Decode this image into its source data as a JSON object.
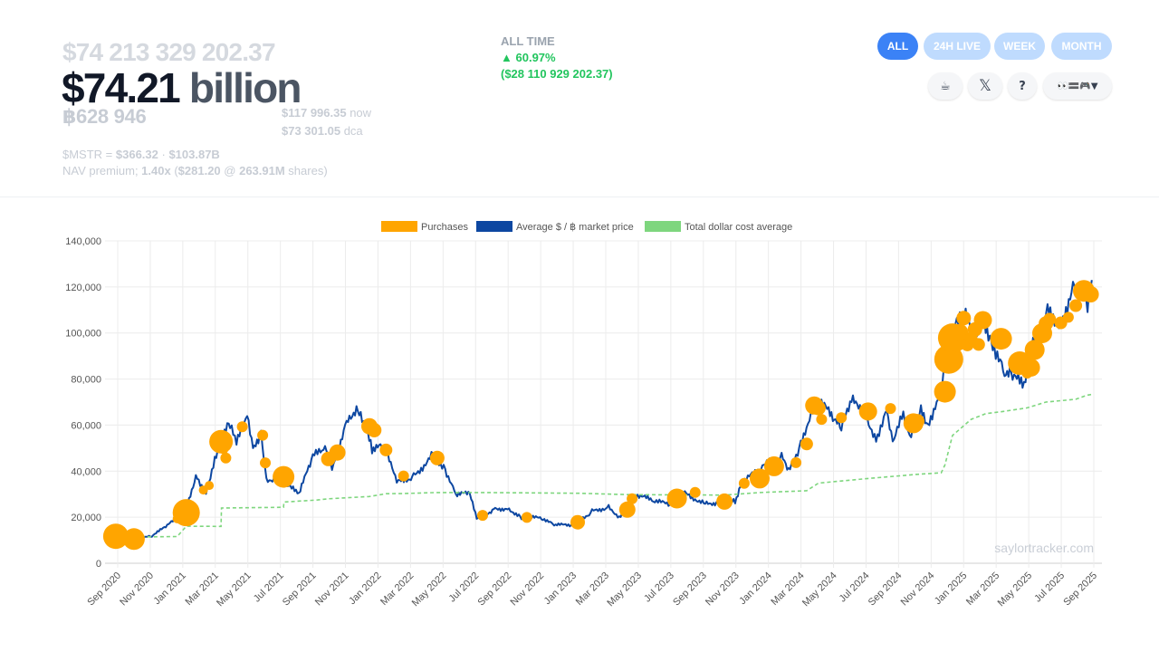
{
  "summary": {
    "usd_value_exact": "$74 213 329 202.37",
    "usd_value_short": "$74.21",
    "usd_value_unit": "billion",
    "btc_holdings": "฿628 946",
    "now_price": "$117 996.35",
    "now_label": "now",
    "dca_price": "$73 301.05",
    "dca_label": "dca",
    "mstr_prefix": "$MSTR = ",
    "mstr_price": "$366.32",
    "mstr_sep": " · ",
    "mstr_cap": "$103.87B",
    "nav_prefix": "NAV premium; ",
    "nav_multiple": "1.40x",
    "nav_open": " (",
    "nav_price": "$281.20",
    "nav_at": " @ ",
    "nav_shares": "263.91M",
    "nav_close": " shares)"
  },
  "change": {
    "label": "ALL TIME",
    "arrow": "▲",
    "percent": "60.97%",
    "absolute": "($28 110 929 202.37)"
  },
  "range_buttons": [
    {
      "label": "ALL",
      "active": true
    },
    {
      "label": "24H LIVE",
      "active": false
    },
    {
      "label": "WEEK",
      "active": false
    },
    {
      "label": "MONTH",
      "active": false
    }
  ],
  "icon_buttons": [
    {
      "name": "coffee-icon",
      "glyph": "☕"
    },
    {
      "name": "x-logo-icon",
      "glyph": "𝕏"
    },
    {
      "name": "help-icon",
      "glyph": "?"
    },
    {
      "name": "theme-menu-icon",
      "glyph": "👀🟰🎮▼"
    }
  ],
  "colors": {
    "accent": "#3b82f6",
    "accent_light": "#bfdbfe",
    "positive": "#22c55e",
    "purchases": "#ffa500",
    "market_price": "#0d47a1",
    "dca_line": "#7ed67e"
  },
  "chart_data": {
    "type": "line",
    "legend": [
      "Purchases",
      "Average $ / ฿ market price",
      "Total dollar cost average"
    ],
    "legend_position": "top",
    "grid": true,
    "ylim": [
      0,
      140000
    ],
    "y_ticks": [
      "140,000",
      "120,000",
      "100,000",
      "80,000",
      "60,000",
      "40,000",
      "20,000",
      "0"
    ],
    "x_ticks": [
      "Sep 2020",
      "Nov 2020",
      "Jan 2021",
      "Mar 2021",
      "May 2021",
      "Jul 2021",
      "Sep 2021",
      "Nov 2021",
      "Jan 2022",
      "Mar 2022",
      "May 2022",
      "Jul 2022",
      "Sep 2022",
      "Nov 2022",
      "Jan 2023",
      "Mar 2023",
      "May 2023",
      "Jul 2023",
      "Sep 2023",
      "Nov 2023",
      "Jan 2024",
      "Mar 2024",
      "May 2024",
      "Jul 2024",
      "Sep 2024",
      "Nov 2024",
      "Jan 2025",
      "Mar 2025",
      "May 2025",
      "Jul 2025",
      "Sep 2025"
    ],
    "watermark": "saylortracker.com",
    "series": [
      {
        "name": "Average $ / ฿ market price",
        "points": [
          [
            "2020-08-11",
            11500
          ],
          [
            "2020-09-15",
            10700
          ],
          [
            "2020-10-15",
            11500
          ],
          [
            "2020-11-10",
            15400
          ],
          [
            "2020-12-01",
            19000
          ],
          [
            "2020-12-21",
            23000
          ],
          [
            "2021-01-08",
            38000
          ],
          [
            "2021-01-27",
            31000
          ],
          [
            "2021-02-15",
            48000
          ],
          [
            "2021-03-13",
            61000
          ],
          [
            "2021-03-25",
            52000
          ],
          [
            "2021-04-14",
            63000
          ],
          [
            "2021-04-25",
            49000
          ],
          [
            "2021-05-10",
            57000
          ],
          [
            "2021-05-20",
            37000
          ],
          [
            "2021-06-20",
            35000
          ],
          [
            "2021-07-20",
            30000
          ],
          [
            "2021-08-15",
            46000
          ],
          [
            "2021-09-07",
            50000
          ],
          [
            "2021-09-20",
            41000
          ],
          [
            "2021-10-20",
            64000
          ],
          [
            "2021-11-10",
            67500
          ],
          [
            "2021-12-04",
            49000
          ],
          [
            "2021-12-25",
            50500
          ],
          [
            "2022-01-22",
            35000
          ],
          [
            "2022-02-20",
            38000
          ],
          [
            "2022-03-28",
            47000
          ],
          [
            "2022-04-20",
            41000
          ],
          [
            "2022-05-10",
            30000
          ],
          [
            "2022-06-05",
            30000
          ],
          [
            "2022-06-18",
            19000
          ],
          [
            "2022-07-20",
            23500
          ],
          [
            "2022-08-15",
            24000
          ],
          [
            "2022-09-10",
            20000
          ],
          [
            "2022-10-20",
            19500
          ],
          [
            "2022-11-10",
            16500
          ],
          [
            "2022-12-20",
            16800
          ],
          [
            "2023-01-20",
            22500
          ],
          [
            "2023-02-20",
            24500
          ],
          [
            "2023-03-12",
            20200
          ],
          [
            "2023-04-10",
            30000
          ],
          [
            "2023-05-15",
            27000
          ],
          [
            "2023-06-15",
            25500
          ],
          [
            "2023-07-10",
            30500
          ],
          [
            "2023-08-20",
            26000
          ],
          [
            "2023-09-15",
            26500
          ],
          [
            "2023-10-15",
            27000
          ],
          [
            "2023-10-25",
            34000
          ],
          [
            "2023-12-05",
            42000
          ],
          [
            "2024-01-10",
            46000
          ],
          [
            "2024-01-23",
            39500
          ],
          [
            "2024-02-15",
            52000
          ],
          [
            "2024-03-05",
            66000
          ],
          [
            "2024-03-14",
            72000
          ],
          [
            "2024-04-15",
            63000
          ],
          [
            "2024-05-01",
            58000
          ],
          [
            "2024-05-20",
            70000
          ],
          [
            "2024-06-10",
            68000
          ],
          [
            "2024-07-05",
            54000
          ],
          [
            "2024-07-25",
            68000
          ],
          [
            "2024-08-05",
            53000
          ],
          [
            "2024-08-25",
            64000
          ],
          [
            "2024-09-06",
            53000
          ],
          [
            "2024-09-27",
            66000
          ],
          [
            "2024-10-10",
            60000
          ],
          [
            "2024-10-29",
            73000
          ],
          [
            "2024-11-12",
            88000
          ],
          [
            "2024-11-22",
            99000
          ],
          [
            "2024-12-17",
            107000
          ],
          [
            "2025-01-05",
            97000
          ],
          [
            "2025-01-21",
            106000
          ],
          [
            "2025-02-03",
            100000
          ],
          [
            "2025-02-28",
            84000
          ],
          [
            "2025-03-15",
            82000
          ],
          [
            "2025-04-08",
            76000
          ],
          [
            "2025-04-25",
            94000
          ],
          [
            "2025-05-22",
            110000
          ],
          [
            "2025-06-15",
            105000
          ],
          [
            "2025-07-14",
            122000
          ],
          [
            "2025-08-05",
            114000
          ],
          [
            "2025-08-13",
            123000
          ]
        ]
      },
      {
        "name": "Total dollar cost average",
        "points": [
          [
            "2020-08-11",
            11700
          ],
          [
            "2020-09-14",
            11400
          ],
          [
            "2020-12-04",
            11600
          ],
          [
            "2020-12-21",
            16100
          ],
          [
            "2021-02-24",
            16000
          ],
          [
            "2021-02-25",
            24000
          ],
          [
            "2021-06-21",
            24300
          ],
          [
            "2021-06-22",
            26600
          ],
          [
            "2021-08-24",
            27500
          ],
          [
            "2021-09-13",
            28000
          ],
          [
            "2021-11-29",
            29000
          ],
          [
            "2021-12-30",
            30200
          ],
          [
            "2022-02-01",
            30300
          ],
          [
            "2022-04-05",
            30700
          ],
          [
            "2022-06-29",
            30700
          ],
          [
            "2022-12-27",
            30400
          ],
          [
            "2023-03-27",
            29800
          ],
          [
            "2023-06-28",
            29700
          ],
          [
            "2023-09-25",
            29600
          ],
          [
            "2023-11-30",
            30700
          ],
          [
            "2024-02-26",
            31500
          ],
          [
            "2024-03-19",
            34800
          ],
          [
            "2024-06-20",
            36800
          ],
          [
            "2024-09-20",
            38600
          ],
          [
            "2024-11-04",
            39300
          ],
          [
            "2024-11-11",
            42700
          ],
          [
            "2024-11-25",
            55500
          ],
          [
            "2024-12-30",
            62500
          ],
          [
            "2025-01-27",
            65000
          ],
          [
            "2025-02-24",
            65800
          ],
          [
            "2025-04-14",
            67500
          ],
          [
            "2025-05-19",
            70000
          ],
          [
            "2025-07-14",
            71200
          ],
          [
            "2025-08-04",
            73000
          ],
          [
            "2025-08-13",
            73300
          ]
        ]
      },
      {
        "name": "Purchases",
        "points": [
          [
            "2020-08-11",
            11700,
            14
          ],
          [
            "2020-09-14",
            10500,
            12
          ],
          [
            "2020-12-04",
            19300,
            5
          ],
          [
            "2020-12-21",
            22000,
            15
          ],
          [
            "2021-01-22",
            31800,
            5
          ],
          [
            "2021-02-02",
            33800,
            5
          ],
          [
            "2021-02-24",
            52800,
            13
          ],
          [
            "2021-03-01",
            49300,
            5
          ],
          [
            "2021-03-05",
            45700,
            6
          ],
          [
            "2021-04-05",
            59300,
            6
          ],
          [
            "2021-05-13",
            55600,
            6
          ],
          [
            "2021-05-18",
            43600,
            6
          ],
          [
            "2021-06-21",
            37500,
            12
          ],
          [
            "2021-09-13",
            45300,
            8
          ],
          [
            "2021-09-30",
            48100,
            9
          ],
          [
            "2021-11-29",
            59500,
            9
          ],
          [
            "2021-12-08",
            57800,
            8
          ],
          [
            "2021-12-30",
            49200,
            7
          ],
          [
            "2022-02-01",
            37900,
            6
          ],
          [
            "2022-04-05",
            45700,
            8
          ],
          [
            "2022-06-29",
            20800,
            6
          ],
          [
            "2022-09-20",
            19900,
            6
          ],
          [
            "2022-12-24",
            17800,
            8
          ],
          [
            "2023-03-27",
            23300,
            9
          ],
          [
            "2023-04-05",
            28000,
            6
          ],
          [
            "2023-06-28",
            28100,
            11
          ],
          [
            "2023-08-01",
            30800,
            6
          ],
          [
            "2023-09-25",
            26800,
            9
          ],
          [
            "2023-11-01",
            34700,
            6
          ],
          [
            "2023-11-30",
            36800,
            11
          ],
          [
            "2023-12-27",
            42100,
            11
          ],
          [
            "2024-02-06",
            43700,
            6
          ],
          [
            "2024-02-26",
            51800,
            7
          ],
          [
            "2024-03-11",
            68500,
            10
          ],
          [
            "2024-03-19",
            67400,
            8
          ],
          [
            "2024-03-25",
            62500,
            6
          ],
          [
            "2024-05-01",
            63200,
            6
          ],
          [
            "2024-06-20",
            65900,
            10
          ],
          [
            "2024-08-01",
            67200,
            6
          ],
          [
            "2024-09-13",
            60800,
            11
          ],
          [
            "2024-09-20",
            61700,
            8
          ],
          [
            "2024-11-11",
            74500,
            12
          ],
          [
            "2024-11-18",
            88600,
            16
          ],
          [
            "2024-11-25",
            97900,
            16
          ],
          [
            "2024-12-02",
            96700,
            12
          ],
          [
            "2024-12-09",
            100400,
            9
          ],
          [
            "2024-12-16",
            106500,
            8
          ],
          [
            "2024-12-23",
            94800,
            7
          ],
          [
            "2024-12-30",
            97800,
            7
          ],
          [
            "2025-01-06",
            101500,
            8
          ],
          [
            "2025-01-13",
            95000,
            7
          ],
          [
            "2025-01-21",
            105600,
            10
          ],
          [
            "2025-02-24",
            97500,
            12
          ],
          [
            "2025-03-31",
            86900,
            13
          ],
          [
            "2025-04-14",
            82600,
            6
          ],
          [
            "2025-04-21",
            85000,
            10
          ],
          [
            "2025-04-28",
            92700,
            11
          ],
          [
            "2025-05-12",
            99900,
            11
          ],
          [
            "2025-05-19",
            104100,
            8
          ],
          [
            "2025-05-26",
            106000,
            7
          ],
          [
            "2025-06-16",
            104400,
            7
          ],
          [
            "2025-06-30",
            106800,
            6
          ],
          [
            "2025-07-14",
            111900,
            7
          ],
          [
            "2025-07-29",
            118300,
            12
          ],
          [
            "2025-08-11",
            116800,
            9
          ]
        ]
      }
    ]
  }
}
